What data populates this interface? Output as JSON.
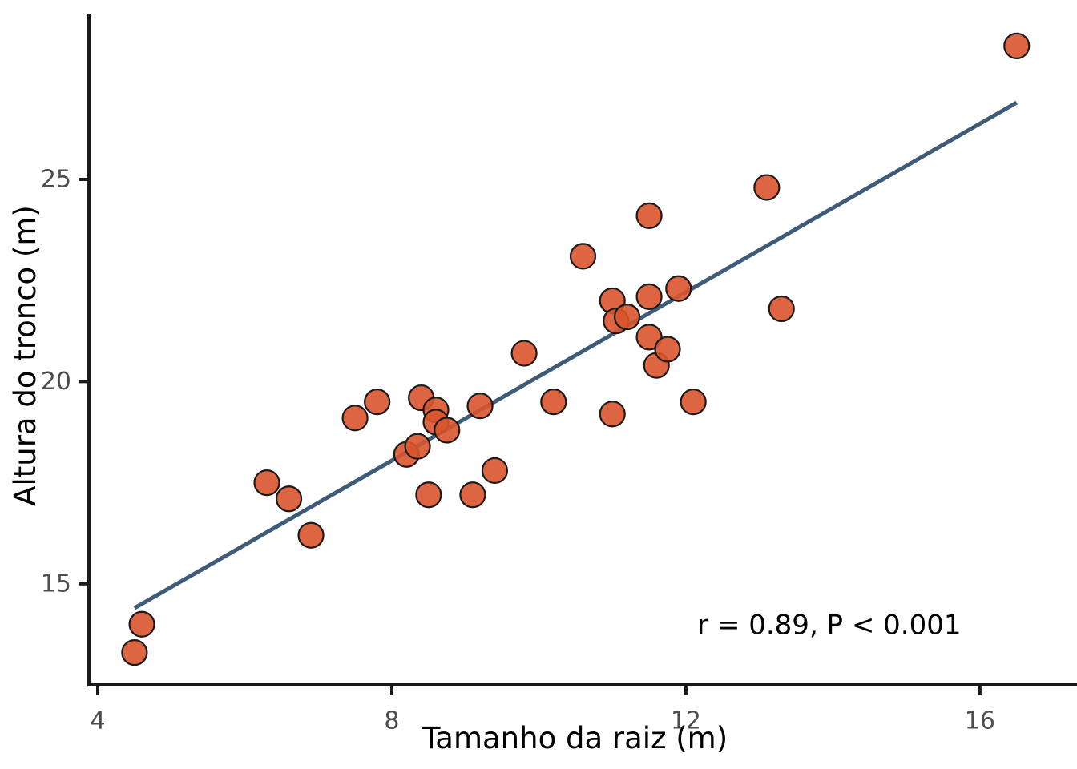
{
  "chart_data": {
    "type": "scatter",
    "title": "",
    "xlabel": "Tamanho da raiz (m)",
    "ylabel": "Altura do tronco (m)",
    "x_ticks": [
      4,
      8,
      12,
      16
    ],
    "y_ticks": [
      15,
      20,
      25
    ],
    "xlim": [
      3.88,
      17.32
    ],
    "ylim": [
      12.5,
      29.1
    ],
    "grid": false,
    "legend": "none",
    "points": [
      [
        4.5,
        13.3
      ],
      [
        4.6,
        14.0
      ],
      [
        6.3,
        17.5
      ],
      [
        6.6,
        17.1
      ],
      [
        6.9,
        16.2
      ],
      [
        7.5,
        19.1
      ],
      [
        7.8,
        19.5
      ],
      [
        8.2,
        18.2
      ],
      [
        8.35,
        18.4
      ],
      [
        8.4,
        19.6
      ],
      [
        8.5,
        17.2
      ],
      [
        8.6,
        19.3
      ],
      [
        8.6,
        19.0
      ],
      [
        8.75,
        18.8
      ],
      [
        9.1,
        17.2
      ],
      [
        9.2,
        19.4
      ],
      [
        9.4,
        17.8
      ],
      [
        9.8,
        20.7
      ],
      [
        10.2,
        19.5
      ],
      [
        10.6,
        23.1
      ],
      [
        11.0,
        22.0
      ],
      [
        11.0,
        19.2
      ],
      [
        11.05,
        21.5
      ],
      [
        11.2,
        21.6
      ],
      [
        11.5,
        24.1
      ],
      [
        11.5,
        22.1
      ],
      [
        11.5,
        21.1
      ],
      [
        11.6,
        20.4
      ],
      [
        11.75,
        20.8
      ],
      [
        11.9,
        22.3
      ],
      [
        12.1,
        19.5
      ],
      [
        13.1,
        24.8
      ],
      [
        13.3,
        21.8
      ],
      [
        16.5,
        28.3
      ]
    ],
    "trend_line": {
      "x1": 4.5,
      "y1": 14.4,
      "x2": 16.5,
      "y2": 26.9
    },
    "annotation": {
      "text": "r = 0.89, P < 0.001",
      "x": 13.95,
      "y": 14.0
    },
    "colors": {
      "point_fill": "#D9542E",
      "point_stroke": "#1A1A1A",
      "trend_line": "#3E5C78",
      "tick_label": "#4D4D4D",
      "axis": "#1A1A1A",
      "text": "#000000",
      "background": "#FFFFFF"
    }
  }
}
